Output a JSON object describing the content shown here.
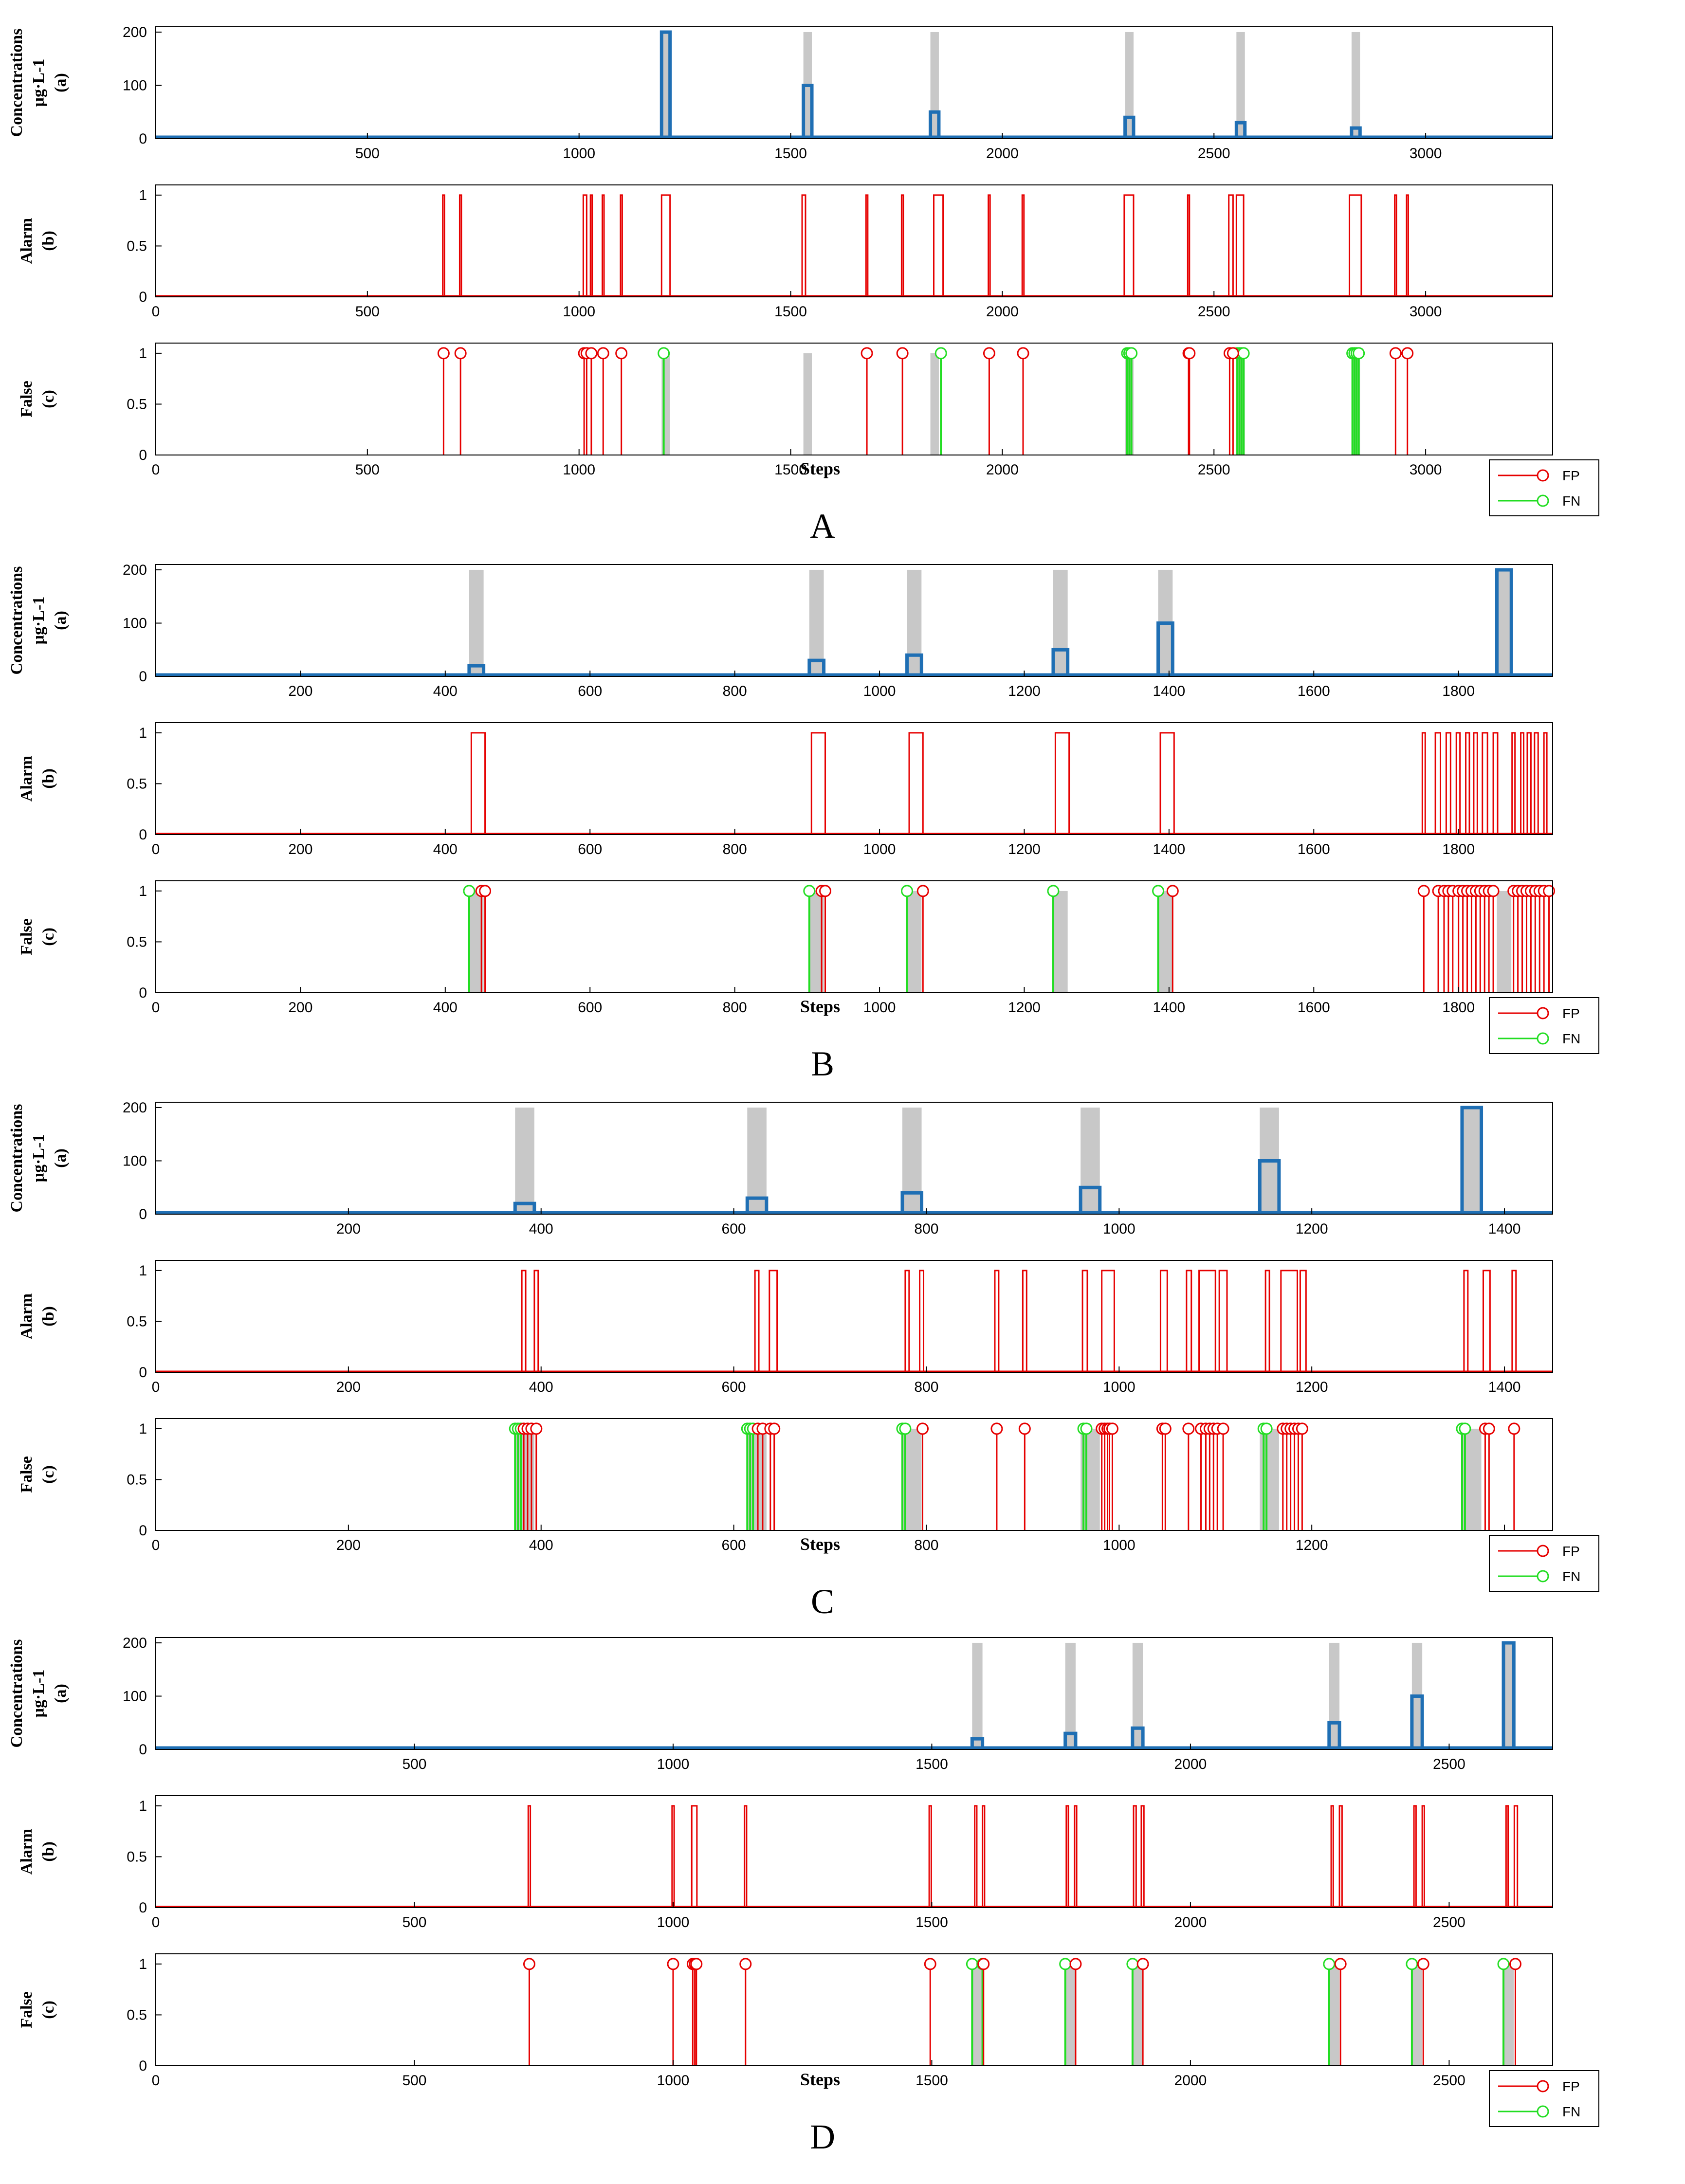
{
  "colors": {
    "concentration": "#1f6fb4",
    "alarm": "#e60000",
    "fp": "#e60000",
    "fn": "#22dd22",
    "event_shade": "#c8c8c8"
  },
  "chart_data": [
    {
      "panel": "A",
      "type": "line",
      "xlabel": "Steps",
      "legend": [
        "FP",
        "FN"
      ],
      "legend_placement": "bottom-right",
      "subplots": {
        "a": {
          "ylabel_lines": [
            "Concentrations",
            "μg·L-1",
            "(a)"
          ],
          "yticks": [
            0,
            100,
            200
          ]
        },
        "b": {
          "ylabel_lines": [
            "Alarm",
            "(b)"
          ],
          "yticks": [
            "0",
            "0.5",
            "1"
          ]
        },
        "c": {
          "ylabel_lines": [
            "False",
            "(c)"
          ],
          "yticks": [
            "0",
            "0.5",
            "1"
          ]
        }
      },
      "xlim": [
        0,
        3300
      ],
      "xticks_a": [
        500,
        1000,
        1500,
        2000,
        2500,
        3000
      ],
      "xticks_bc": [
        0,
        500,
        1000,
        1500,
        2000,
        2500,
        3000
      ],
      "events": [
        {
          "start": 1195,
          "end": 1215,
          "conc": 200
        },
        {
          "start": 1530,
          "end": 1550,
          "conc": 100
        },
        {
          "start": 1830,
          "end": 1850,
          "conc": 50
        },
        {
          "start": 2290,
          "end": 2310,
          "conc": 40
        },
        {
          "start": 2553,
          "end": 2573,
          "conc": 30
        },
        {
          "start": 2825,
          "end": 2845,
          "conc": 20
        }
      ],
      "alarms": [
        [
          678,
          682
        ],
        [
          718,
          722
        ],
        [
          1010,
          1018
        ],
        [
          1027,
          1031
        ],
        [
          1055,
          1059
        ],
        [
          1098,
          1102
        ],
        [
          1195,
          1215
        ],
        [
          1527,
          1535
        ],
        [
          1678,
          1682
        ],
        [
          1762,
          1766
        ],
        [
          1838,
          1860
        ],
        [
          1967,
          1971
        ],
        [
          2047,
          2051
        ],
        [
          2288,
          2310
        ],
        [
          2438,
          2442
        ],
        [
          2535,
          2545
        ],
        [
          2553,
          2570
        ],
        [
          2820,
          2848
        ],
        [
          2927,
          2931
        ],
        [
          2955,
          2959
        ]
      ],
      "fp": [
        680,
        720,
        1012,
        1018,
        1029,
        1057,
        1100,
        1680,
        1764,
        1969,
        2049,
        2440,
        2442,
        2537,
        2545,
        2929,
        2957
      ],
      "fn": [
        1200,
        1855,
        2295,
        2300,
        2305,
        2555,
        2560,
        2565,
        2570,
        2827,
        2832,
        2837,
        2842
      ]
    },
    {
      "panel": "B",
      "type": "line",
      "xlabel": "Steps",
      "legend": [
        "FP",
        "FN"
      ],
      "legend_placement": "bottom-right",
      "subplots": {
        "a": {
          "ylabel_lines": [
            "Concentrations",
            "μg·L-1",
            "(a)"
          ],
          "yticks": [
            0,
            100,
            200
          ]
        },
        "b": {
          "ylabel_lines": [
            "Alarm",
            "(b)"
          ],
          "yticks": [
            "0",
            "0.5",
            "1"
          ]
        },
        "c": {
          "ylabel_lines": [
            "False",
            "(c)"
          ],
          "yticks": [
            "0",
            "0.5",
            "1"
          ]
        }
      },
      "xlim": [
        0,
        1930
      ],
      "xticks_a": [
        200,
        400,
        600,
        800,
        1000,
        1200,
        1400,
        1600,
        1800
      ],
      "xticks_bc": [
        0,
        200,
        400,
        600,
        800,
        1000,
        1200,
        1400,
        1600,
        1800
      ],
      "events": [
        {
          "start": 433,
          "end": 453,
          "conc": 20
        },
        {
          "start": 903,
          "end": 923,
          "conc": 30
        },
        {
          "start": 1038,
          "end": 1058,
          "conc": 40
        },
        {
          "start": 1240,
          "end": 1260,
          "conc": 50
        },
        {
          "start": 1385,
          "end": 1405,
          "conc": 100
        },
        {
          "start": 1853,
          "end": 1873,
          "conc": 200
        }
      ],
      "alarms": [
        [
          436,
          455
        ],
        [
          906,
          925
        ],
        [
          1041,
          1060
        ],
        [
          1243,
          1262
        ],
        [
          1388,
          1407
        ],
        [
          1750,
          1754
        ],
        [
          1768,
          1775
        ],
        [
          1783,
          1789
        ],
        [
          1797,
          1802
        ],
        [
          1810,
          1815
        ],
        [
          1821,
          1826
        ],
        [
          1833,
          1840
        ],
        [
          1848,
          1854
        ],
        [
          1874,
          1878
        ],
        [
          1886,
          1890
        ],
        [
          1895,
          1900
        ],
        [
          1905,
          1910
        ],
        [
          1918,
          1922
        ]
      ],
      "fp": [
        450,
        455,
        920,
        925,
        1060,
        1405,
        1752,
        1772,
        1780,
        1786,
        1792,
        1800,
        1806,
        1812,
        1818,
        1824,
        1830,
        1836,
        1842,
        1848,
        1876,
        1882,
        1888,
        1894,
        1900,
        1906,
        1912,
        1918,
        1925
      ],
      "fn": [
        433,
        903,
        1038,
        1240,
        1385
      ]
    },
    {
      "panel": "C",
      "type": "line",
      "xlabel": "Steps",
      "legend": [
        "FP",
        "FN"
      ],
      "legend_placement": "bottom-right",
      "subplots": {
        "a": {
          "ylabel_lines": [
            "Concentrations",
            "μg·L-1",
            "(a)"
          ],
          "yticks": [
            0,
            100,
            200
          ]
        },
        "b": {
          "ylabel_lines": [
            "Alarm",
            "(b)"
          ],
          "yticks": [
            "0",
            "0.5",
            "1"
          ]
        },
        "c": {
          "ylabel_lines": [
            "False",
            "(c)"
          ],
          "yticks": [
            "0",
            "0.5",
            "1"
          ]
        }
      },
      "xlim": [
        0,
        1450
      ],
      "xticks_a": [
        200,
        400,
        600,
        800,
        1000,
        1200,
        1400
      ],
      "xticks_bc": [
        0,
        200,
        400,
        600,
        800,
        1000,
        1200,
        1400
      ],
      "events": [
        {
          "start": 373,
          "end": 393,
          "conc": 20
        },
        {
          "start": 614,
          "end": 634,
          "conc": 30
        },
        {
          "start": 775,
          "end": 795,
          "conc": 40
        },
        {
          "start": 960,
          "end": 980,
          "conc": 50
        },
        {
          "start": 1146,
          "end": 1166,
          "conc": 100
        },
        {
          "start": 1356,
          "end": 1376,
          "conc": 200
        }
      ],
      "alarms": [
        [
          380,
          384
        ],
        [
          393,
          397
        ],
        [
          622,
          626
        ],
        [
          637,
          645
        ],
        [
          778,
          782
        ],
        [
          793,
          797
        ],
        [
          871,
          875
        ],
        [
          900,
          904
        ],
        [
          962,
          967
        ],
        [
          982,
          995
        ],
        [
          1043,
          1050
        ],
        [
          1070,
          1075
        ],
        [
          1083,
          1100
        ],
        [
          1104,
          1112
        ],
        [
          1152,
          1156
        ],
        [
          1168,
          1185
        ],
        [
          1188,
          1194
        ],
        [
          1358,
          1362
        ],
        [
          1378,
          1385
        ],
        [
          1408,
          1412
        ]
      ],
      "fp": [
        382,
        386,
        390,
        395,
        625,
        630,
        638,
        642,
        796,
        873,
        902,
        982,
        985,
        988,
        990,
        993,
        1045,
        1048,
        1072,
        1085,
        1090,
        1094,
        1098,
        1102,
        1108,
        1170,
        1174,
        1178,
        1182,
        1186,
        1190,
        1380,
        1384,
        1410
      ],
      "fn": [
        373,
        376,
        379,
        614,
        617,
        620,
        775,
        778,
        963,
        966,
        1150,
        1153,
        1356,
        1359
      ]
    },
    {
      "panel": "D",
      "type": "line",
      "xlabel": "Steps",
      "legend": [
        "FP",
        "FN"
      ],
      "legend_placement": "bottom-right",
      "subplots": {
        "a": {
          "ylabel_lines": [
            "Concentrations",
            "μg·L-1",
            "(a)"
          ],
          "yticks": [
            0,
            100,
            200
          ]
        },
        "b": {
          "ylabel_lines": [
            "Alarm",
            "(b)"
          ],
          "yticks": [
            "0",
            "0.5",
            "1"
          ]
        },
        "c": {
          "ylabel_lines": [
            "False",
            "(c)"
          ],
          "yticks": [
            "0",
            "0.5",
            "1"
          ]
        }
      },
      "xlim": [
        0,
        2700
      ],
      "xticks_a": [
        500,
        1000,
        1500,
        2000,
        2500
      ],
      "xticks_bc": [
        0,
        500,
        1000,
        1500,
        2000,
        2500
      ],
      "events": [
        {
          "start": 1578,
          "end": 1598,
          "conc": 20
        },
        {
          "start": 1758,
          "end": 1778,
          "conc": 30
        },
        {
          "start": 1888,
          "end": 1908,
          "conc": 40
        },
        {
          "start": 2268,
          "end": 2288,
          "conc": 50
        },
        {
          "start": 2428,
          "end": 2448,
          "conc": 100
        },
        {
          "start": 2605,
          "end": 2625,
          "conc": 200
        }
      ],
      "alarms": [
        [
          720,
          724
        ],
        [
          998,
          1002
        ],
        [
          1036,
          1046
        ],
        [
          1138,
          1142
        ],
        [
          1495,
          1499
        ],
        [
          1583,
          1587
        ],
        [
          1598,
          1602
        ],
        [
          1760,
          1764
        ],
        [
          1776,
          1780
        ],
        [
          1890,
          1895
        ],
        [
          1905,
          1910
        ],
        [
          2272,
          2276
        ],
        [
          2288,
          2293
        ],
        [
          2432,
          2436
        ],
        [
          2448,
          2452
        ],
        [
          2610,
          2614
        ],
        [
          2626,
          2632
        ]
      ],
      "fp": [
        722,
        1000,
        1038,
        1042,
        1045,
        1140,
        1497,
        1600,
        1778,
        1908,
        2290,
        2450,
        2628
      ],
      "fn": [
        1578,
        1598,
        1758,
        1888,
        2268,
        2428,
        2605
      ]
    }
  ],
  "panel_labels": [
    "A",
    "B",
    "C",
    "D"
  ]
}
